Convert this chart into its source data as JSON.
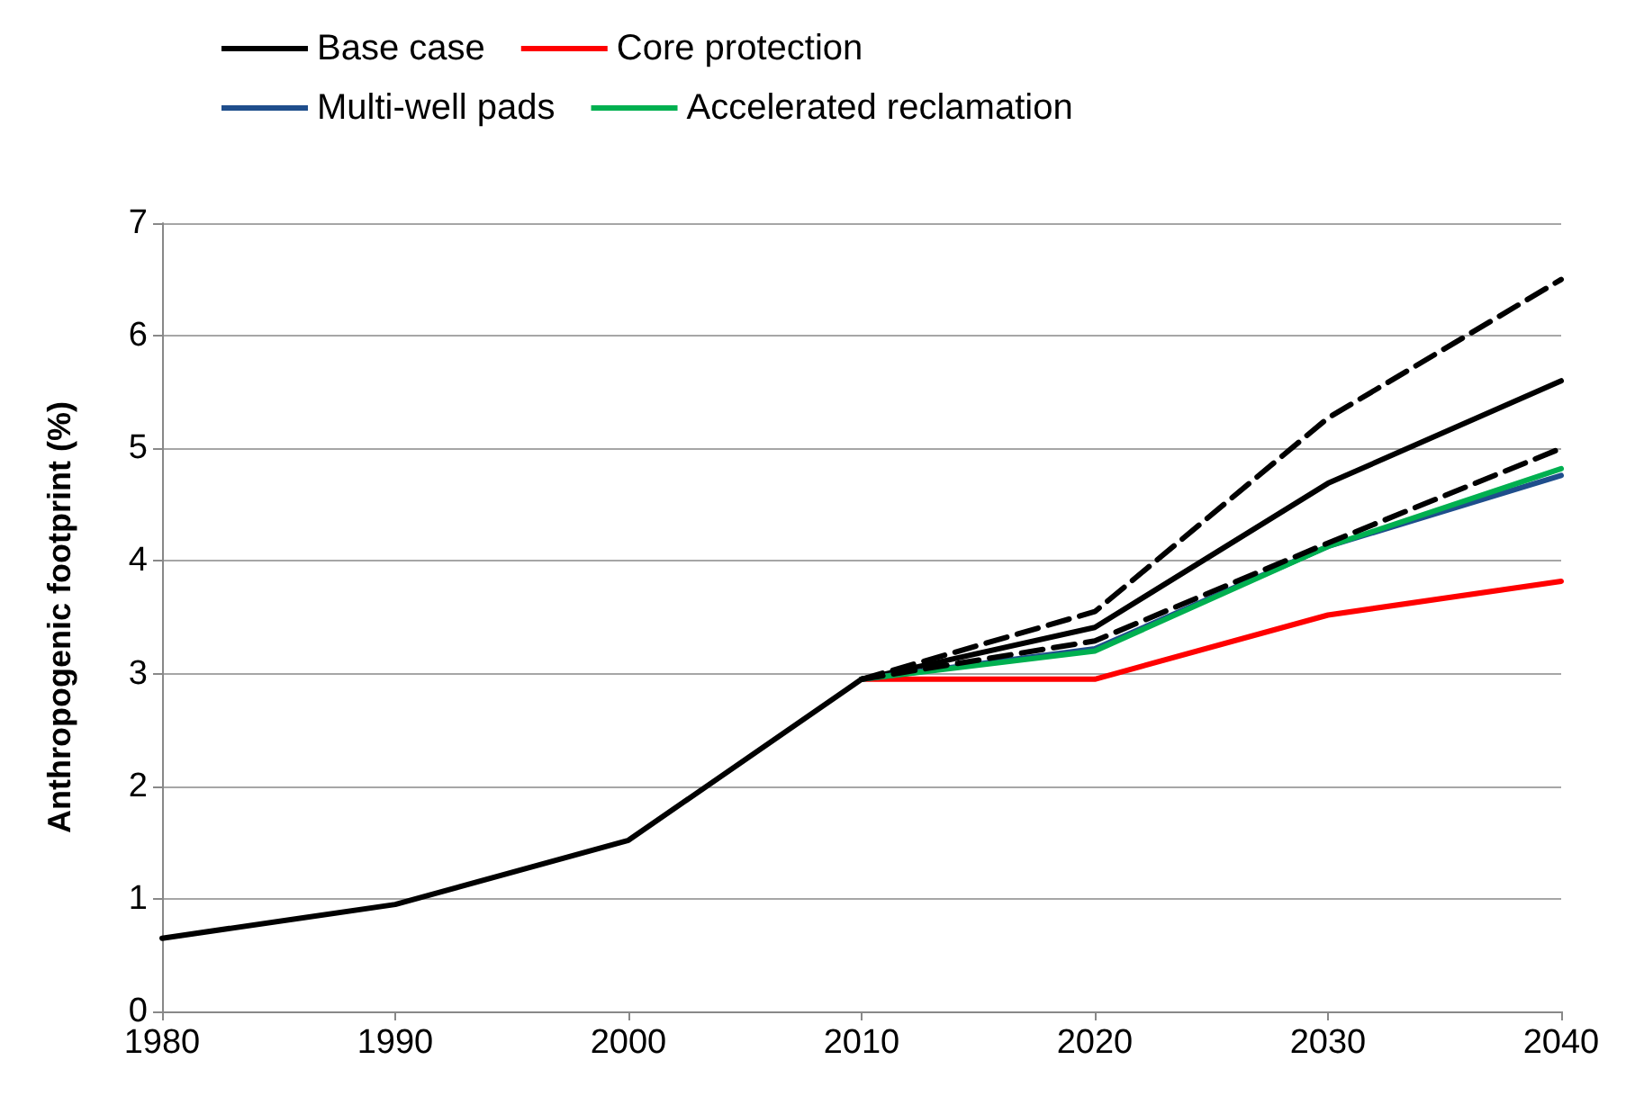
{
  "chart_data": {
    "type": "line",
    "ylabel": "Anthropogenic footprint (%)",
    "x": [
      1980,
      1990,
      2000,
      2010,
      2020,
      2030,
      2040
    ],
    "xlim": [
      1980,
      2040
    ],
    "xticks": [
      1980,
      1990,
      2000,
      2010,
      2020,
      2030,
      2040
    ],
    "ylim": [
      0,
      7
    ],
    "yticks": [
      0,
      1,
      2,
      3,
      4,
      5,
      6,
      7
    ],
    "grid": "y",
    "legend": "top",
    "marker": "none",
    "line_style": "solid",
    "series": [
      {
        "name": "Base case",
        "color": "#000000",
        "values": [
          0.65,
          0.95,
          1.52,
          2.95,
          3.41,
          4.69,
          5.6
        ]
      },
      {
        "name": "Core protection",
        "color": "#ff0000",
        "values": [
          null,
          null,
          null,
          2.95,
          2.95,
          3.52,
          3.82
        ]
      },
      {
        "name": "Multi-well pads",
        "color": "#1f4e8c",
        "values": [
          null,
          null,
          null,
          2.95,
          3.22,
          4.13,
          4.76
        ]
      },
      {
        "name": "Accelerated reclamation",
        "color": "#00b050",
        "values": [
          null,
          null,
          null,
          2.95,
          3.2,
          4.13,
          4.82
        ]
      },
      {
        "color": "#000000",
        "line_style": "dashed",
        "values": [
          null,
          null,
          null,
          2.95,
          3.55,
          5.27,
          6.5
        ]
      },
      {
        "color": "#000000",
        "line_style": "dashed",
        "values": [
          null,
          null,
          null,
          2.95,
          3.29,
          4.16,
          5.0
        ]
      }
    ]
  }
}
